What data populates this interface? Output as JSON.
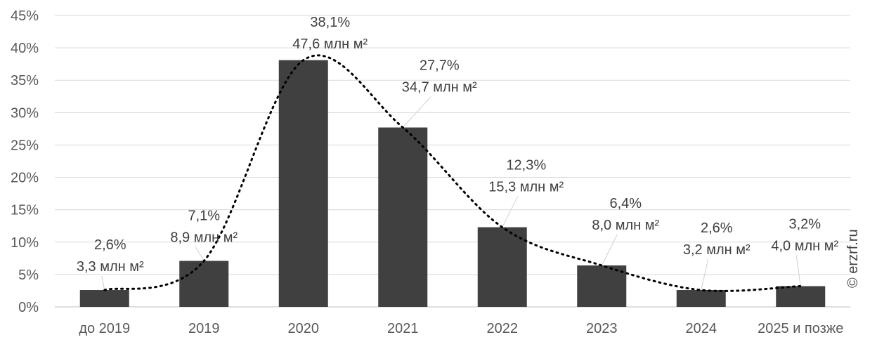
{
  "chart_data": {
    "type": "bar",
    "categories": [
      "до 2019",
      "2019",
      "2020",
      "2021",
      "2022",
      "2023",
      "2024",
      "2025 и позже"
    ],
    "values": [
      2.6,
      7.1,
      38.1,
      27.7,
      12.3,
      6.4,
      2.6,
      3.2
    ],
    "value_labels": [
      "2,6%",
      "7,1%",
      "38,1%",
      "27,7%",
      "12,3%",
      "6,4%",
      "2,6%",
      "3,2%"
    ],
    "area_labels": [
      "3,3 млн м²",
      "8,9 млн м²",
      "47,6 млн м²",
      "34,7 млн м²",
      "15,3 млн м²",
      "8,0 млн м²",
      "3,2 млн м²",
      "4,0 млн м²"
    ],
    "ylim": [
      0,
      45
    ],
    "yticks": [
      0,
      5,
      10,
      15,
      20,
      25,
      30,
      35,
      40,
      45
    ],
    "ytick_labels": [
      "0%",
      "5%",
      "10%",
      "15%",
      "20%",
      "25%",
      "30%",
      "35%",
      "40%",
      "45%"
    ],
    "grid": true,
    "trendline": "dotted smooth curve through bar tops",
    "bar_color": "#404040",
    "grid_color": "#d9d9d9"
  },
  "watermark": "© erzrf.ru"
}
